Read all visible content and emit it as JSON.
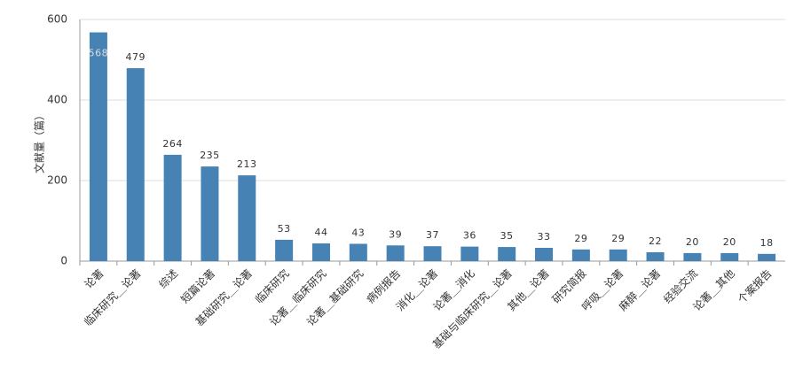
{
  "chart_data": {
    "type": "bar",
    "y_label": "文献量（篇）",
    "categories": [
      "论著",
      "临床研究＿论著",
      "综述",
      "短篇论著",
      "基础研究＿论著",
      "临床研究",
      "论著＿临床研究",
      "论著＿基础研究",
      "病例报告",
      "消化＿论著",
      "论著＿消化",
      "基础与临床研究＿论著",
      "其他＿论著",
      "研究简报",
      "呼吸＿论著",
      "麻醉＿论著",
      "经验交流",
      "论著＿其他",
      "个案报告"
    ],
    "values": [
      568,
      479,
      264,
      235,
      213,
      53,
      44,
      43,
      39,
      37,
      36,
      35,
      33,
      29,
      29,
      22,
      20,
      20,
      18
    ],
    "color": "#4682b4",
    "ylim": [
      0,
      600
    ],
    "yticks": [
      0,
      200,
      400,
      600
    ],
    "grid": true
  }
}
